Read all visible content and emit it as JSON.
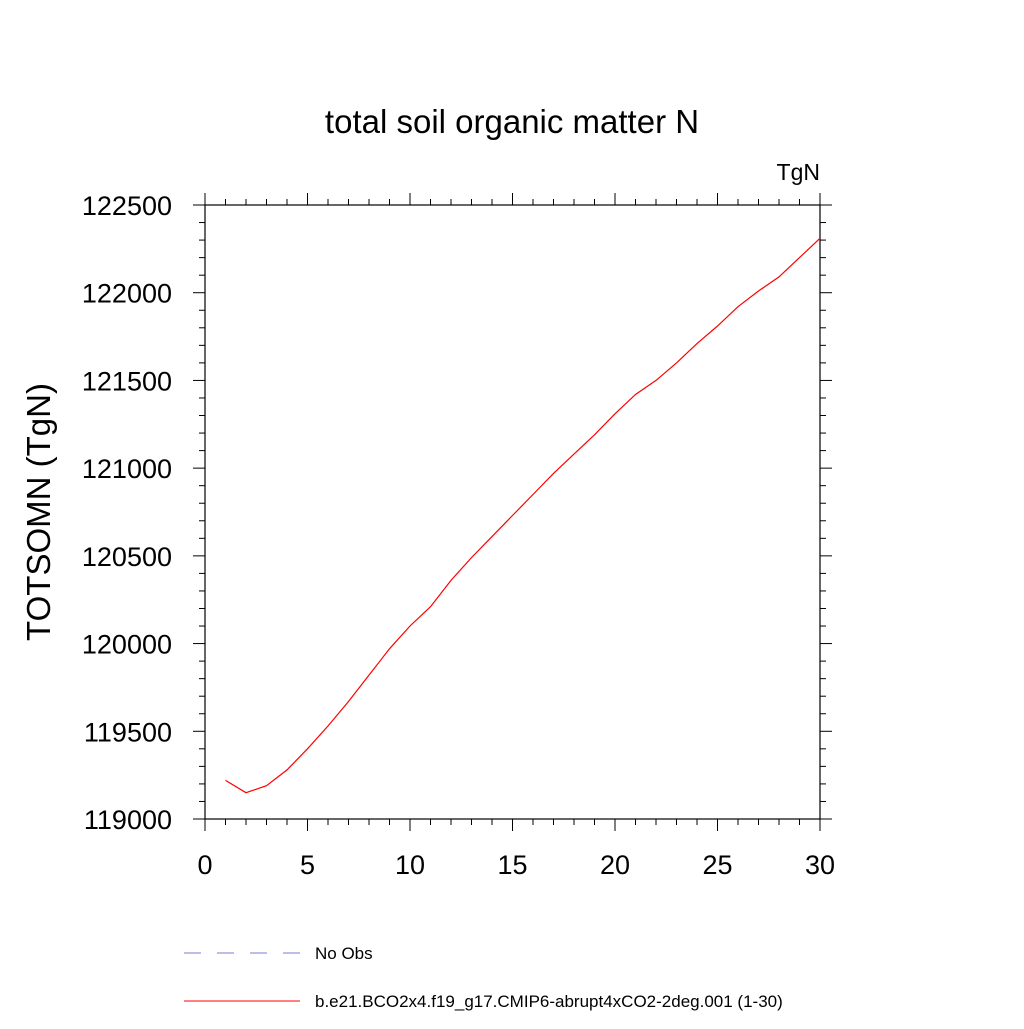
{
  "chart_data": {
    "type": "line",
    "title": "total soil organic matter N",
    "units_label": "TgN",
    "ylabel": "TOTSOMN  (TgN)",
    "xlabel": "",
    "xlim": [
      0,
      30
    ],
    "ylim": [
      119000,
      122500
    ],
    "x_ticks": [
      0,
      5,
      10,
      15,
      20,
      25,
      30
    ],
    "y_ticks": [
      119000,
      119500,
      120000,
      120500,
      121000,
      121500,
      122000,
      122500
    ],
    "x_tick_labels": [
      "0",
      "5",
      "10",
      "15",
      "20",
      "25",
      "30"
    ],
    "y_tick_labels": [
      "119000",
      "119500",
      "120000",
      "120500",
      "121000",
      "121500",
      "122000",
      "122500"
    ],
    "grid": false,
    "legend_position": "bottom",
    "legend": [
      {
        "label": "No Obs",
        "color": "#7b7bd6",
        "style": "dashed"
      },
      {
        "label": "b.e21.BCO2x4.f19_g17.CMIP6-abrupt4xCO2-2deg.001 (1-30)",
        "color": "#ff0000",
        "style": "solid"
      }
    ],
    "series": [
      {
        "name": "b.e21.BCO2x4.f19_g17.CMIP6-abrupt4xCO2-2deg.001 (1-30)",
        "color": "#ff0000",
        "x": [
          1,
          2,
          3,
          4,
          5,
          6,
          7,
          8,
          9,
          10,
          11,
          12,
          13,
          14,
          15,
          16,
          17,
          18,
          19,
          20,
          21,
          22,
          23,
          24,
          25,
          26,
          27,
          28,
          29,
          30
        ],
        "values": [
          119220,
          119150,
          119190,
          119280,
          119400,
          119530,
          119670,
          119820,
          119970,
          120100,
          120210,
          120360,
          120490,
          120610,
          120730,
          120850,
          120970,
          121080,
          121190,
          121310,
          121420,
          121500,
          121600,
          121710,
          121810,
          121920,
          122010,
          122090,
          122200,
          122310
        ]
      }
    ]
  }
}
